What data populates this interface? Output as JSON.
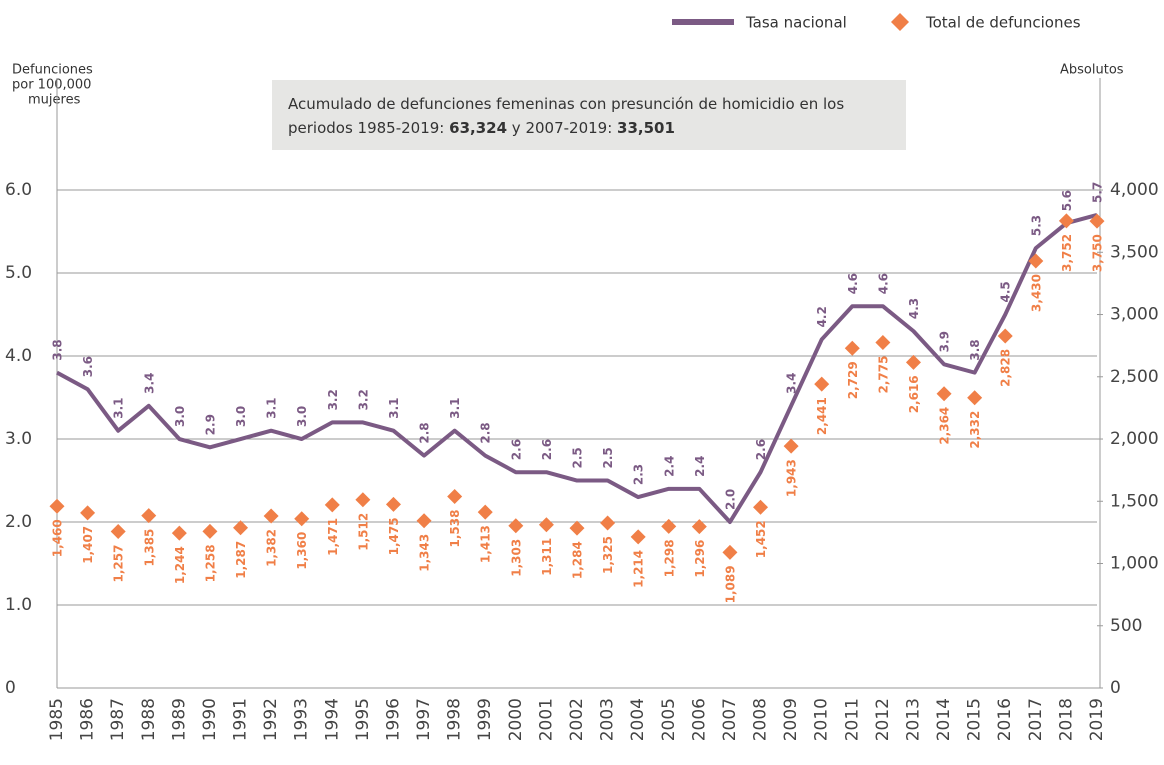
{
  "chart_data": {
    "type": "line",
    "annotation": [
      "Acumulado de defunciones femeninas con presunción de homicidio en los periodos 1985-2019: ",
      "63,324",
      " y 2007-2019: ",
      "33,501"
    ],
    "ylabel": [
      "Defunciones",
      "por 100,000",
      "mujeres"
    ],
    "y2label": "Absolutos",
    "categories": [
      "1985",
      "1986",
      "1987",
      "1988",
      "1989",
      "1990",
      "1991",
      "1992",
      "1993",
      "1994",
      "1995",
      "1996",
      "1997",
      "1998",
      "1999",
      "2000",
      "2001",
      "2002",
      "2003",
      "2004",
      "2005",
      "2006",
      "2007",
      "2008",
      "2009",
      "2010",
      "2011",
      "2012",
      "2013",
      "2014",
      "2015",
      "2016",
      "2017",
      "2018",
      "2019"
    ],
    "series": [
      {
        "name": "Tasa nacional",
        "type": "line",
        "color": "#7b5a84",
        "values": [
          3.8,
          3.6,
          3.1,
          3.4,
          3.0,
          2.9,
          3.0,
          3.1,
          3.0,
          3.2,
          3.2,
          3.1,
          2.8,
          3.1,
          2.8,
          2.6,
          2.6,
          2.5,
          2.5,
          2.3,
          2.4,
          2.4,
          2.0,
          2.6,
          3.4,
          4.2,
          4.6,
          4.6,
          4.3,
          3.9,
          3.8,
          4.5,
          5.3,
          5.6,
          5.7
        ],
        "value_labels": [
          "3.8",
          "3.6",
          "3.1",
          "3.4",
          "3.0",
          "2.9",
          "3.0",
          "3.1",
          "3.0",
          "3.2",
          "3.2",
          "3.1",
          "2.8",
          "3.1",
          "2.8",
          "2.6",
          "2.6",
          "2.5",
          "2.5",
          "2.3",
          "2.4",
          "2.4",
          "2.0",
          "2.6",
          "3.4",
          "4.2",
          "4.6",
          "4.6",
          "4.3",
          "3.9",
          "3.8",
          "4.5",
          "5.3",
          "5.6",
          "5.7"
        ]
      },
      {
        "name": "Total de defunciones",
        "type": "scatter",
        "marker": "diamond",
        "axis": "y2",
        "color": "#f07f47",
        "values": [
          1460,
          1407,
          1257,
          1385,
          1244,
          1258,
          1287,
          1382,
          1360,
          1471,
          1512,
          1475,
          1343,
          1538,
          1413,
          1303,
          1311,
          1284,
          1325,
          1214,
          1298,
          1296,
          1089,
          1452,
          1943,
          2441,
          2729,
          2775,
          2616,
          2364,
          2332,
          2828,
          3430,
          3752,
          3750
        ],
        "value_labels": [
          "1,460",
          "1,407",
          "1,257",
          "1,385",
          "1,244",
          "1,258",
          "1,287",
          "1,382",
          "1,360",
          "1,471",
          "1,512",
          "1,475",
          "1,343",
          "1,538",
          "1,413",
          "1,303",
          "1,311",
          "1,284",
          "1,325",
          "1,214",
          "1,298",
          "1,296",
          "1,089",
          "1,452",
          "1,943",
          "2,441",
          "2,729",
          "2,775",
          "2,616",
          "2,364",
          "2,332",
          "2,828",
          "3,430",
          "3,752",
          "3,750"
        ]
      }
    ],
    "ylim": [
      0,
      7.35
    ],
    "yticks": [
      0,
      {
        "value": 1,
        "label": "1.0"
      },
      {
        "value": 2,
        "label": "2.0"
      },
      {
        "value": 3,
        "label": "3.0"
      },
      {
        "value": 4,
        "label": "4.0"
      },
      {
        "value": 5,
        "label": "5.0"
      },
      {
        "value": 6,
        "label": "6.0"
      }
    ],
    "y2lim": [
      0,
      4900
    ],
    "y2ticks": [
      0,
      500,
      {
        "value": 1000,
        "label": "1,000"
      },
      {
        "value": 1500,
        "label": "1,500"
      },
      {
        "value": 2000,
        "label": "2,000"
      },
      {
        "value": 2500,
        "label": "2,500"
      },
      {
        "value": 3000,
        "label": "3,000"
      },
      {
        "value": 3500,
        "label": "3,500"
      },
      {
        "value": 4000,
        "label": "4,000"
      }
    ],
    "grid": true
  }
}
